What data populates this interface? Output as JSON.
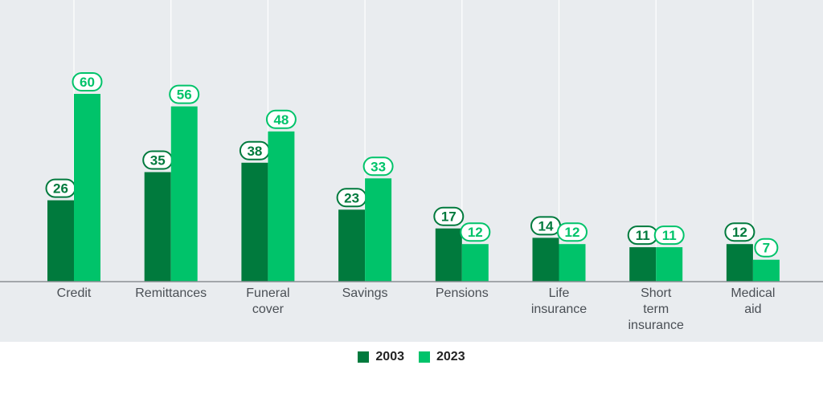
{
  "chart_data": {
    "type": "bar",
    "categories": [
      [
        "Credit"
      ],
      [
        "Remittances"
      ],
      [
        "Funeral",
        "cover"
      ],
      [
        "Savings"
      ],
      [
        "Pensions"
      ],
      [
        "Life",
        "insurance"
      ],
      [
        "Short",
        "term",
        "insurance"
      ],
      [
        "Medical",
        "aid"
      ]
    ],
    "series": [
      {
        "name": "2003",
        "color": "#007a3d",
        "values": [
          26,
          35,
          38,
          23,
          17,
          14,
          11,
          12
        ]
      },
      {
        "name": "2023",
        "color": "#00c36a",
        "values": [
          60,
          56,
          48,
          33,
          12,
          12,
          11,
          7
        ]
      }
    ],
    "ylim": [
      0,
      70
    ],
    "grid": "vertical lines at category centers",
    "legend_position": "bottom-center",
    "data_labels": "pill above each bar",
    "colors": {
      "background": "#e9ecef",
      "axis": "#8a8f94",
      "category_text": "#4a4f55"
    }
  }
}
